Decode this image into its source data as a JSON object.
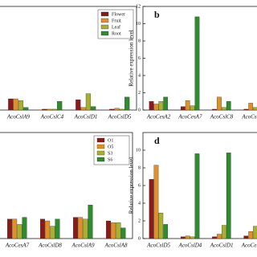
{
  "chart_data": [
    {
      "type": "bar",
      "categories": [
        "AcoCslA8",
        "AcoCslA9",
        "AcoCslC4",
        "AcoCslD1",
        "AcoCslD5"
      ],
      "series": [
        {
          "name": "Flower",
          "color": "#8b1a1a",
          "values": [
            0.3,
            1.3,
            0.1,
            1.2,
            0.1
          ]
        },
        {
          "name": "Fruit",
          "color": "#e0902a",
          "values": [
            0.4,
            1.3,
            0.1,
            0.3,
            0.2
          ]
        },
        {
          "name": "Leaf",
          "color": "#a8b030",
          "values": [
            1.3,
            1.1,
            0.1,
            1.9,
            0.1
          ]
        },
        {
          "name": "Root",
          "color": "#2e8b2e",
          "values": [
            10.2,
            0.3,
            1.0,
            0.4,
            1.5
          ]
        }
      ],
      "ylim": [
        0,
        12
      ],
      "legend": "upper-right"
    },
    {
      "type": "bar",
      "label": "b",
      "y_label": "Relative expression level",
      "categories": [
        "AcoCesA2",
        "AcoCesA7",
        "AcoCslC8",
        "AcoCslE2"
      ],
      "series": [
        {
          "name": "Flower",
          "color": "#8b1a1a",
          "values": [
            1.0,
            0.4,
            0.1,
            0.1
          ]
        },
        {
          "name": "Fruit",
          "color": "#e0902a",
          "values": [
            0.7,
            1.1,
            1.5,
            0.8
          ]
        },
        {
          "name": "Leaf",
          "color": "#a8b030",
          "values": [
            1.0,
            0.5,
            0.3,
            0.3
          ]
        },
        {
          "name": "Root",
          "color": "#2e8b2e",
          "values": [
            1.5,
            10.8,
            1.0,
            1.0
          ]
        }
      ],
      "ylim": [
        0,
        12
      ],
      "yticks": [
        0,
        2,
        4,
        6,
        8,
        10,
        12
      ]
    },
    {
      "type": "bar",
      "categories": [
        "AcoCslE2",
        "AcoCesA7",
        "AcoCslD8",
        "AcoCslA9",
        "AcoCslA8"
      ],
      "series": [
        {
          "name": "O1",
          "color": "#8b1a1a",
          "values": [
            0.2,
            1.1,
            1.1,
            1.2,
            1.0
          ]
        },
        {
          "name": "O5",
          "color": "#e0902a",
          "values": [
            0.3,
            1.1,
            1.0,
            1.2,
            0.9
          ]
        },
        {
          "name": "S3",
          "color": "#a8b030",
          "values": [
            4.4,
            0.8,
            0.7,
            1.1,
            0.9
          ]
        },
        {
          "name": "S6",
          "color": "#2e8b2e",
          "values": [
            0.5,
            1.2,
            1.1,
            1.9,
            0.6
          ]
        }
      ],
      "ylim": [
        0,
        6
      ],
      "legend": "upper-right"
    },
    {
      "type": "bar",
      "label": "d",
      "y_label": "Relative expression level",
      "categories": [
        "AcoCslD5",
        "AcoCslD4",
        "AcoCslD1",
        "AcoCesA4"
      ],
      "series": [
        {
          "name": "O1",
          "color": "#8b1a1a",
          "values": [
            6.7,
            0.2,
            0.2,
            0.3
          ]
        },
        {
          "name": "O5",
          "color": "#e0902a",
          "values": [
            8.3,
            0.3,
            0.5,
            0.8
          ]
        },
        {
          "name": "S3",
          "color": "#a8b030",
          "values": [
            2.9,
            0.2,
            1.5,
            1.4
          ]
        },
        {
          "name": "S6",
          "color": "#2e8b2e",
          "values": [
            1.6,
            9.6,
            9.7,
            1.1
          ]
        }
      ],
      "ylim": [
        0,
        12
      ],
      "yticks": [
        0,
        2,
        4,
        6,
        8,
        10
      ]
    }
  ]
}
